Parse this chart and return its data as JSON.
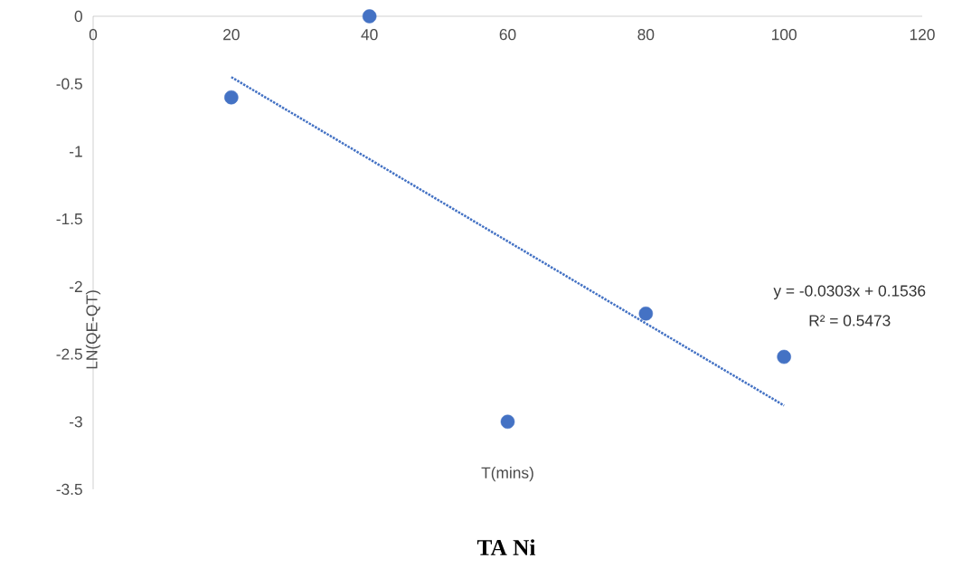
{
  "chart_data": {
    "type": "scatter",
    "title": "TA Ni",
    "xlabel": "T(mins)",
    "ylabel": "LN(QE-QT)",
    "xlim": [
      0,
      120
    ],
    "xticks": [
      0,
      20,
      40,
      60,
      80,
      100,
      120
    ],
    "ylim": [
      -3.5,
      0
    ],
    "yticks": [
      -3.5,
      -3,
      -2.5,
      -2,
      -1.5,
      -1,
      -0.5,
      0
    ],
    "series": [
      {
        "color": "#4472c4",
        "marker": "circle",
        "x": [
          20,
          40,
          60,
          80,
          100
        ],
        "values": [
          -0.6,
          0,
          -3,
          -2.2,
          -2.52
        ]
      },
      {
        "type": "line",
        "color": "#4472c4",
        "line_style": "dotted",
        "marker": "none",
        "x": [
          20,
          100
        ],
        "values": [
          -0.45,
          -2.88
        ]
      }
    ],
    "annotations": [
      "y = -0.0303x + 0.1536",
      "R² = 0.5473"
    ]
  }
}
